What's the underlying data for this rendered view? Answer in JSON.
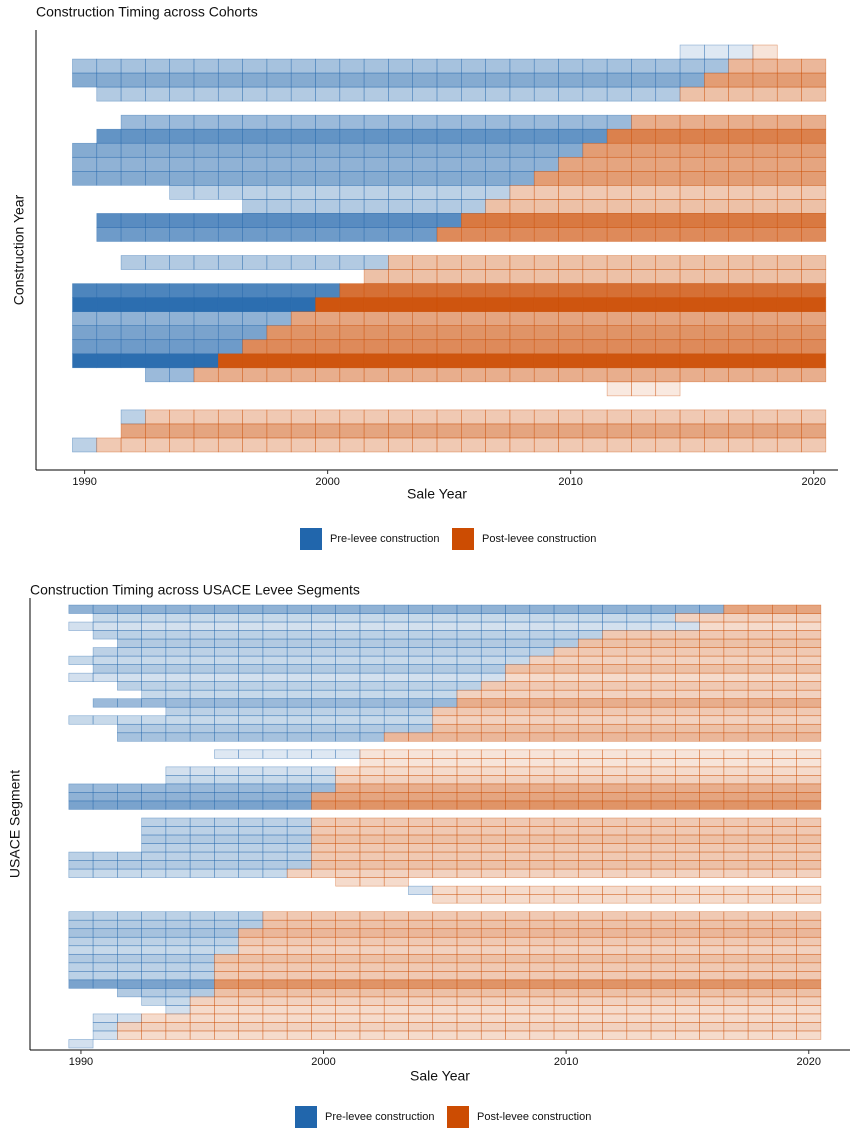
{
  "chart_data": [
    {
      "type": "tile",
      "title": "Construction Timing across Cohorts",
      "x_label": "Sale Year",
      "y_label": "Construction Year",
      "xlim": [
        1988,
        2021
      ],
      "xticks": [
        1990,
        2000,
        2010,
        2020
      ],
      "series": [
        {
          "name": "Pre-levee construction",
          "color": "#2166ac"
        },
        {
          "name": "Post-levee construction",
          "color": "#cc4c02"
        }
      ],
      "rows": [
        {
          "start": 2015,
          "levee": 2018,
          "end": 2018,
          "shade": 0.15
        },
        {
          "start": 1990,
          "levee": 2017,
          "end": 2020,
          "shade": 0.4
        },
        {
          "start": 1990,
          "levee": 2016,
          "end": 2020,
          "shade": 0.55
        },
        {
          "start": 1991,
          "levee": 2015,
          "end": 2020,
          "shade": 0.35
        },
        null,
        {
          "start": 1992,
          "levee": 2013,
          "end": 2020,
          "shade": 0.45
        },
        {
          "start": 1991,
          "levee": 2012,
          "end": 2020,
          "shade": 0.7
        },
        {
          "start": 1990,
          "levee": 2011,
          "end": 2020,
          "shade": 0.55
        },
        {
          "start": 1990,
          "levee": 2010,
          "end": 2020,
          "shade": 0.5
        },
        {
          "start": 1990,
          "levee": 2009,
          "end": 2020,
          "shade": 0.55
        },
        {
          "start": 1994,
          "levee": 2008,
          "end": 2020,
          "shade": 0.3
        },
        {
          "start": 1997,
          "levee": 2007,
          "end": 2020,
          "shade": 0.35
        },
        {
          "start": 1991,
          "levee": 2006,
          "end": 2020,
          "shade": 0.75
        },
        {
          "start": 1991,
          "levee": 2005,
          "end": 2020,
          "shade": 0.65
        },
        null,
        {
          "start": 1992,
          "levee": 2003,
          "end": 2020,
          "shade": 0.35
        },
        {
          "start": 2002,
          "levee": 2002,
          "end": 2020,
          "shade": 0.35
        },
        {
          "start": 1990,
          "levee": 2001,
          "end": 2020,
          "shade": 0.8
        },
        {
          "start": 1990,
          "levee": 2000,
          "end": 2020,
          "shade": 0.95
        },
        {
          "start": 1990,
          "levee": 1999,
          "end": 2020,
          "shade": 0.5
        },
        {
          "start": 1990,
          "levee": 1998,
          "end": 2020,
          "shade": 0.6
        },
        {
          "start": 1990,
          "levee": 1997,
          "end": 2020,
          "shade": 0.65
        },
        {
          "start": 1990,
          "levee": 1996,
          "end": 2020,
          "shade": 0.95
        },
        {
          "start": 1993,
          "levee": 1995,
          "end": 2020,
          "shade": 0.45
        },
        {
          "start": 2012,
          "levee": 2012,
          "end": 2014,
          "shade": 0.12
        },
        null,
        {
          "start": 1992,
          "levee": 1993,
          "end": 2020,
          "shade": 0.3
        },
        {
          "start": 1992,
          "levee": 1992,
          "end": 2020,
          "shade": 0.5
        },
        {
          "start": 1990,
          "levee": 1991,
          "end": 2020,
          "shade": 0.3
        }
      ]
    },
    {
      "type": "tile",
      "title": "Construction Timing across USACE Levee Segments",
      "x_label": "Sale Year",
      "y_label": "USACE Segment",
      "xlim": [
        1987.9,
        2021.7
      ],
      "xticks": [
        1990,
        2000,
        2010,
        2020
      ],
      "series": [
        {
          "name": "Pre-levee construction",
          "color": "#2166ac"
        },
        {
          "name": "Post-levee construction",
          "color": "#cc4c02"
        }
      ],
      "rows": [
        {
          "start": 1990,
          "levee": 2017,
          "end": 2020,
          "shade": 0.5
        },
        {
          "start": 1991,
          "levee": 2015,
          "end": 2020,
          "shade": 0.25
        },
        {
          "start": 1990,
          "levee": 2016,
          "end": 2020,
          "shade": 0.2
        },
        {
          "start": 1991,
          "levee": 2012,
          "end": 2020,
          "shade": 0.3
        },
        {
          "start": 1992,
          "levee": 2011,
          "end": 2020,
          "shade": 0.35
        },
        {
          "start": 1991,
          "levee": 2010,
          "end": 2020,
          "shade": 0.3
        },
        {
          "start": 1990,
          "levee": 2009,
          "end": 2020,
          "shade": 0.25
        },
        {
          "start": 1991,
          "levee": 2008,
          "end": 2020,
          "shade": 0.35
        },
        {
          "start": 1990,
          "levee": 2008,
          "end": 2020,
          "shade": 0.2
        },
        {
          "start": 1992,
          "levee": 2007,
          "end": 2020,
          "shade": 0.3
        },
        {
          "start": 1993,
          "levee": 2006,
          "end": 2020,
          "shade": 0.25
        },
        {
          "start": 1991,
          "levee": 2006,
          "end": 2020,
          "shade": 0.45
        },
        {
          "start": 1994,
          "levee": 2005,
          "end": 2020,
          "shade": 0.3
        },
        {
          "start": 1990,
          "levee": 2005,
          "end": 2020,
          "shade": 0.25
        },
        {
          "start": 1992,
          "levee": 2005,
          "end": 2020,
          "shade": 0.35
        },
        {
          "start": 1992,
          "levee": 2003,
          "end": 2020,
          "shade": 0.4
        },
        null,
        {
          "start": 1996,
          "levee": 2002,
          "end": 2020,
          "shade": 0.15
        },
        {
          "start": 2002,
          "levee": 2002,
          "end": 2020,
          "shade": 0.15
        },
        {
          "start": 1994,
          "levee": 2001,
          "end": 2020,
          "shade": 0.2
        },
        {
          "start": 1994,
          "levee": 2001,
          "end": 2020,
          "shade": 0.25
        },
        {
          "start": 1990,
          "levee": 2001,
          "end": 2020,
          "shade": 0.45
        },
        {
          "start": 1990,
          "levee": 2000,
          "end": 2020,
          "shade": 0.5
        },
        {
          "start": 1990,
          "levee": 2000,
          "end": 2020,
          "shade": 0.6
        },
        null,
        {
          "start": 1993,
          "levee": 2000,
          "end": 2020,
          "shade": 0.3
        },
        {
          "start": 1993,
          "levee": 2000,
          "end": 2020,
          "shade": 0.3
        },
        {
          "start": 1993,
          "levee": 2000,
          "end": 2020,
          "shade": 0.35
        },
        {
          "start": 1993,
          "levee": 2000,
          "end": 2020,
          "shade": 0.3
        },
        {
          "start": 1990,
          "levee": 2000,
          "end": 2020,
          "shade": 0.3
        },
        {
          "start": 1990,
          "levee": 2000,
          "end": 2020,
          "shade": 0.35
        },
        {
          "start": 1990,
          "levee": 1999,
          "end": 2020,
          "shade": 0.25
        },
        {
          "start": 2001,
          "levee": 2001,
          "end": 2003,
          "shade": 0.2
        },
        {
          "start": 2004,
          "levee": 2005,
          "end": 2020,
          "shade": 0.2
        },
        {
          "start": 2005,
          "levee": 2005,
          "end": 2020,
          "shade": 0.2
        },
        null,
        {
          "start": 1990,
          "levee": 1998,
          "end": 2020,
          "shade": 0.3
        },
        {
          "start": 1990,
          "levee": 1998,
          "end": 2020,
          "shade": 0.35
        },
        {
          "start": 1990,
          "levee": 1997,
          "end": 2020,
          "shade": 0.4
        },
        {
          "start": 1990,
          "levee": 1997,
          "end": 2020,
          "shade": 0.3
        },
        {
          "start": 1990,
          "levee": 1997,
          "end": 2020,
          "shade": 0.25
        },
        {
          "start": 1990,
          "levee": 1996,
          "end": 2020,
          "shade": 0.35
        },
        {
          "start": 1990,
          "levee": 1996,
          "end": 2020,
          "shade": 0.3
        },
        {
          "start": 1990,
          "levee": 1996,
          "end": 2020,
          "shade": 0.3
        },
        {
          "start": 1990,
          "levee": 1996,
          "end": 2020,
          "shade": 0.6
        },
        {
          "start": 1992,
          "levee": 1996,
          "end": 2020,
          "shade": 0.35
        },
        {
          "start": 1993,
          "levee": 1995,
          "end": 2020,
          "shade": 0.25
        },
        {
          "start": 1994,
          "levee": 1995,
          "end": 2020,
          "shade": 0.2
        },
        {
          "start": 1991,
          "levee": 1993,
          "end": 2020,
          "shade": 0.2
        },
        {
          "start": 1991,
          "levee": 1992,
          "end": 2020,
          "shade": 0.25
        },
        {
          "start": 1991,
          "levee": 1992,
          "end": 2020,
          "shade": 0.2
        },
        {
          "start": 1990,
          "levee": 1991,
          "end": 1990,
          "shade": 0.2
        }
      ]
    }
  ]
}
